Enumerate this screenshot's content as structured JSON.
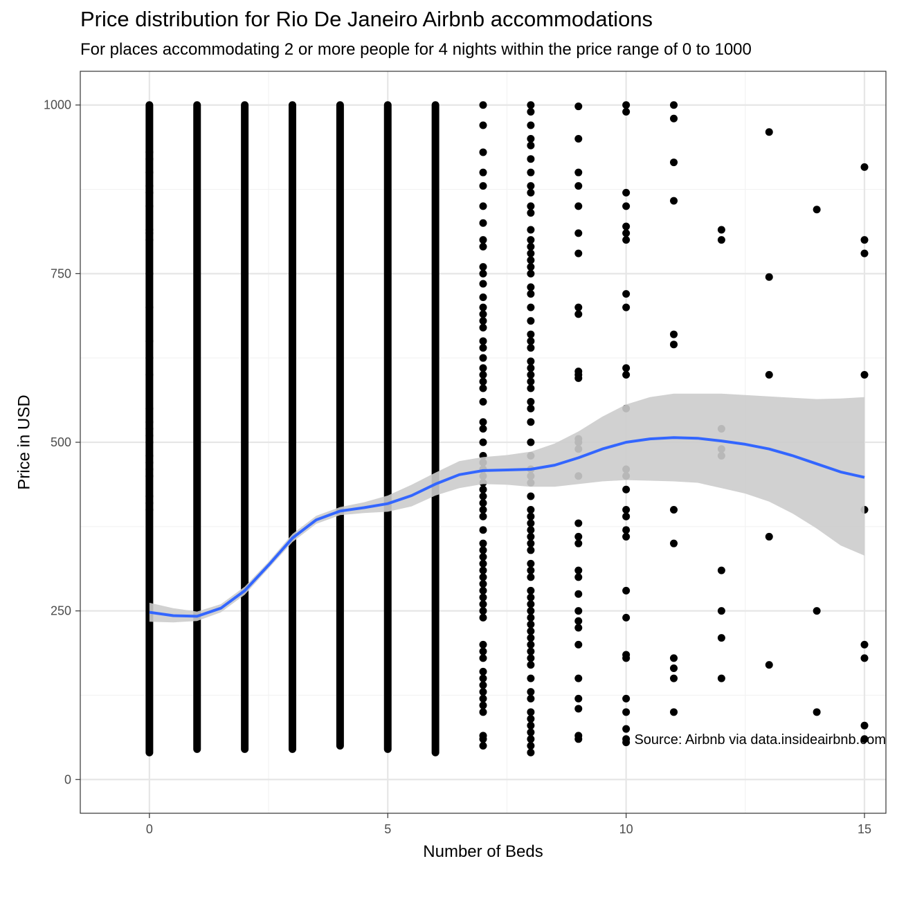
{
  "title": "Price distribution for Rio De Janeiro Airbnb accommodations",
  "subtitle": "For places accommodating 2 or more people for 4 nights within the price range of 0 to 1000",
  "caption": "Source: Airbnb via data.insideairbnb.com",
  "colors": {
    "points": "#000000",
    "smooth_line": "#3366FF",
    "ribbon": "#cccccc",
    "grid_major": "#e6e6e6",
    "grid_minor": "#f2f2f2",
    "panel_border": "#333333"
  },
  "chart_data": {
    "type": "scatter",
    "xlabel": "Number of Beds",
    "ylabel": "Price in USD",
    "xlim": [
      -1.45,
      15.45
    ],
    "ylim": [
      -50,
      1050
    ],
    "x_ticks": [
      0,
      5,
      10,
      15
    ],
    "y_ticks": [
      0,
      250,
      500,
      750,
      1000
    ],
    "grid": true,
    "dense_columns": [
      {
        "x": 0,
        "min": 40,
        "max": 1000
      },
      {
        "x": 1,
        "min": 45,
        "max": 1000
      },
      {
        "x": 2,
        "min": 45,
        "max": 1000
      },
      {
        "x": 3,
        "min": 45,
        "max": 1000
      },
      {
        "x": 4,
        "min": 50,
        "max": 1000
      },
      {
        "x": 5,
        "min": 45,
        "max": 1000
      },
      {
        "x": 6,
        "min": 40,
        "max": 1000
      }
    ],
    "sparse_points": [
      [
        0,
        930
      ],
      [
        0,
        920
      ],
      [
        0,
        900
      ],
      [
        0,
        880
      ],
      [
        0,
        870
      ],
      [
        0,
        850
      ],
      [
        0,
        815
      ],
      [
        0,
        810
      ],
      [
        0,
        800
      ],
      [
        0,
        750
      ],
      [
        0,
        700
      ],
      [
        0,
        650
      ],
      [
        0,
        625
      ],
      [
        0,
        600
      ],
      [
        0,
        550
      ],
      [
        0,
        530
      ],
      [
        0,
        520
      ],
      [
        0,
        510
      ],
      [
        0,
        500
      ],
      [
        0,
        480
      ],
      [
        0,
        470
      ],
      [
        0,
        460
      ],
      [
        0,
        450
      ],
      [
        0,
        420
      ],
      [
        0,
        410
      ],
      [
        0,
        400
      ],
      [
        7,
        1000
      ],
      [
        7,
        970
      ],
      [
        7,
        930
      ],
      [
        7,
        900
      ],
      [
        7,
        880
      ],
      [
        7,
        850
      ],
      [
        7,
        825
      ],
      [
        7,
        800
      ],
      [
        7,
        790
      ],
      [
        7,
        760
      ],
      [
        7,
        750
      ],
      [
        7,
        735
      ],
      [
        7,
        715
      ],
      [
        7,
        700
      ],
      [
        7,
        690
      ],
      [
        7,
        680
      ],
      [
        7,
        670
      ],
      [
        7,
        650
      ],
      [
        7,
        640
      ],
      [
        7,
        625
      ],
      [
        7,
        610
      ],
      [
        7,
        600
      ],
      [
        7,
        590
      ],
      [
        7,
        580
      ],
      [
        7,
        560
      ],
      [
        7,
        530
      ],
      [
        7,
        520
      ],
      [
        7,
        500
      ],
      [
        7,
        480
      ],
      [
        7,
        470
      ],
      [
        7,
        460
      ],
      [
        7,
        450
      ],
      [
        7,
        440
      ],
      [
        7,
        430
      ],
      [
        7,
        420
      ],
      [
        7,
        410
      ],
      [
        7,
        400
      ],
      [
        7,
        390
      ],
      [
        7,
        370
      ],
      [
        7,
        350
      ],
      [
        7,
        340
      ],
      [
        7,
        330
      ],
      [
        7,
        320
      ],
      [
        7,
        310
      ],
      [
        7,
        300
      ],
      [
        7,
        290
      ],
      [
        7,
        280
      ],
      [
        7,
        270
      ],
      [
        7,
        260
      ],
      [
        7,
        250
      ],
      [
        7,
        240
      ],
      [
        7,
        200
      ],
      [
        7,
        190
      ],
      [
        7,
        180
      ],
      [
        7,
        160
      ],
      [
        7,
        150
      ],
      [
        7,
        140
      ],
      [
        7,
        130
      ],
      [
        7,
        120
      ],
      [
        7,
        110
      ],
      [
        7,
        100
      ],
      [
        7,
        65
      ],
      [
        7,
        60
      ],
      [
        7,
        50
      ],
      [
        8,
        1000
      ],
      [
        8,
        990
      ],
      [
        8,
        970
      ],
      [
        8,
        950
      ],
      [
        8,
        940
      ],
      [
        8,
        920
      ],
      [
        8,
        900
      ],
      [
        8,
        880
      ],
      [
        8,
        870
      ],
      [
        8,
        850
      ],
      [
        8,
        840
      ],
      [
        8,
        815
      ],
      [
        8,
        800
      ],
      [
        8,
        790
      ],
      [
        8,
        780
      ],
      [
        8,
        770
      ],
      [
        8,
        760
      ],
      [
        8,
        750
      ],
      [
        8,
        730
      ],
      [
        8,
        720
      ],
      [
        8,
        700
      ],
      [
        8,
        680
      ],
      [
        8,
        660
      ],
      [
        8,
        650
      ],
      [
        8,
        640
      ],
      [
        8,
        620
      ],
      [
        8,
        610
      ],
      [
        8,
        600
      ],
      [
        8,
        590
      ],
      [
        8,
        580
      ],
      [
        8,
        560
      ],
      [
        8,
        550
      ],
      [
        8,
        530
      ],
      [
        8,
        500
      ],
      [
        8,
        480
      ],
      [
        8,
        460
      ],
      [
        8,
        450
      ],
      [
        8,
        440
      ],
      [
        8,
        420
      ],
      [
        8,
        400
      ],
      [
        8,
        390
      ],
      [
        8,
        380
      ],
      [
        8,
        370
      ],
      [
        8,
        360
      ],
      [
        8,
        350
      ],
      [
        8,
        340
      ],
      [
        8,
        320
      ],
      [
        8,
        310
      ],
      [
        8,
        300
      ],
      [
        8,
        280
      ],
      [
        8,
        270
      ],
      [
        8,
        260
      ],
      [
        8,
        250
      ],
      [
        8,
        240
      ],
      [
        8,
        230
      ],
      [
        8,
        220
      ],
      [
        8,
        210
      ],
      [
        8,
        200
      ],
      [
        8,
        190
      ],
      [
        8,
        180
      ],
      [
        8,
        170
      ],
      [
        8,
        150
      ],
      [
        8,
        130
      ],
      [
        8,
        120
      ],
      [
        8,
        100
      ],
      [
        8,
        90
      ],
      [
        8,
        80
      ],
      [
        8,
        70
      ],
      [
        8,
        60
      ],
      [
        8,
        50
      ],
      [
        8,
        40
      ],
      [
        9,
        998
      ],
      [
        9,
        950
      ],
      [
        9,
        900
      ],
      [
        9,
        880
      ],
      [
        9,
        850
      ],
      [
        9,
        810
      ],
      [
        9,
        780
      ],
      [
        9,
        700
      ],
      [
        9,
        690
      ],
      [
        9,
        605
      ],
      [
        9,
        600
      ],
      [
        9,
        595
      ],
      [
        9,
        505
      ],
      [
        9,
        500
      ],
      [
        9,
        490
      ],
      [
        9,
        450
      ],
      [
        9,
        380
      ],
      [
        9,
        360
      ],
      [
        9,
        350
      ],
      [
        9,
        310
      ],
      [
        9,
        300
      ],
      [
        9,
        275
      ],
      [
        9,
        250
      ],
      [
        9,
        235
      ],
      [
        9,
        225
      ],
      [
        9,
        200
      ],
      [
        9,
        150
      ],
      [
        9,
        120
      ],
      [
        9,
        105
      ],
      [
        9,
        65
      ],
      [
        9,
        60
      ],
      [
        10,
        1000
      ],
      [
        10,
        990
      ],
      [
        10,
        870
      ],
      [
        10,
        850
      ],
      [
        10,
        820
      ],
      [
        10,
        810
      ],
      [
        10,
        800
      ],
      [
        10,
        720
      ],
      [
        10,
        700
      ],
      [
        10,
        610
      ],
      [
        10,
        600
      ],
      [
        10,
        550
      ],
      [
        10,
        460
      ],
      [
        10,
        450
      ],
      [
        10,
        430
      ],
      [
        10,
        400
      ],
      [
        10,
        390
      ],
      [
        10,
        370
      ],
      [
        10,
        360
      ],
      [
        10,
        280
      ],
      [
        10,
        240
      ],
      [
        10,
        185
      ],
      [
        10,
        180
      ],
      [
        10,
        120
      ],
      [
        10,
        100
      ],
      [
        10,
        75
      ],
      [
        10,
        60
      ],
      [
        10,
        55
      ],
      [
        11,
        1000
      ],
      [
        11,
        980
      ],
      [
        11,
        915
      ],
      [
        11,
        858
      ],
      [
        11,
        660
      ],
      [
        11,
        645
      ],
      [
        11,
        400
      ],
      [
        11,
        350
      ],
      [
        11,
        180
      ],
      [
        11,
        165
      ],
      [
        11,
        150
      ],
      [
        11,
        100
      ],
      [
        12,
        815
      ],
      [
        12,
        800
      ],
      [
        12,
        520
      ],
      [
        12,
        490
      ],
      [
        12,
        480
      ],
      [
        12,
        310
      ],
      [
        12,
        250
      ],
      [
        12,
        210
      ],
      [
        12,
        150
      ],
      [
        13,
        960
      ],
      [
        13,
        745
      ],
      [
        13,
        600
      ],
      [
        13,
        360
      ],
      [
        13,
        170
      ],
      [
        14,
        845
      ],
      [
        14,
        250
      ],
      [
        14,
        100
      ],
      [
        15,
        908
      ],
      [
        15,
        800
      ],
      [
        15,
        780
      ],
      [
        15,
        600
      ],
      [
        15,
        400
      ],
      [
        15,
        200
      ],
      [
        15,
        180
      ],
      [
        15,
        80
      ],
      [
        15,
        60
      ]
    ],
    "smooth_line": [
      [
        0,
        248
      ],
      [
        0.5,
        243
      ],
      [
        1,
        242
      ],
      [
        1.5,
        254
      ],
      [
        2,
        280
      ],
      [
        2.5,
        318
      ],
      [
        3,
        358
      ],
      [
        3.5,
        385
      ],
      [
        4,
        398
      ],
      [
        4.5,
        403
      ],
      [
        5,
        409
      ],
      [
        5.5,
        421
      ],
      [
        6,
        438
      ],
      [
        6.5,
        452
      ],
      [
        7,
        458
      ],
      [
        7.5,
        459
      ],
      [
        8,
        460
      ],
      [
        8.5,
        466
      ],
      [
        9,
        477
      ],
      [
        9.5,
        490
      ],
      [
        10,
        500
      ],
      [
        10.5,
        505
      ],
      [
        11,
        507
      ],
      [
        11.5,
        506
      ],
      [
        12,
        502
      ],
      [
        12.5,
        497
      ],
      [
        13,
        490
      ],
      [
        13.5,
        480
      ],
      [
        14,
        468
      ],
      [
        14.5,
        456
      ],
      [
        15,
        448
      ]
    ],
    "confidence_band": [
      [
        0,
        262,
        234
      ],
      [
        0.5,
        254,
        233
      ],
      [
        1,
        249,
        235
      ],
      [
        1.5,
        260,
        248
      ],
      [
        2,
        286,
        274
      ],
      [
        2.5,
        323,
        313
      ],
      [
        3,
        364,
        352
      ],
      [
        3.5,
        391,
        379
      ],
      [
        4,
        404,
        392
      ],
      [
        4.5,
        411,
        395
      ],
      [
        5,
        421,
        397
      ],
      [
        5.5,
        437,
        405
      ],
      [
        6,
        455,
        421
      ],
      [
        6.5,
        472,
        432
      ],
      [
        7,
        478,
        438
      ],
      [
        7.5,
        481,
        437
      ],
      [
        8,
        486,
        434
      ],
      [
        8.5,
        498,
        434
      ],
      [
        9,
        516,
        438
      ],
      [
        9.5,
        538,
        442
      ],
      [
        10,
        556,
        444
      ],
      [
        10.5,
        567,
        443
      ],
      [
        11,
        572,
        442
      ],
      [
        11.5,
        572,
        440
      ],
      [
        12,
        572,
        432
      ],
      [
        12.5,
        570,
        424
      ],
      [
        13,
        568,
        412
      ],
      [
        13.5,
        566,
        394
      ],
      [
        14,
        564,
        372
      ],
      [
        14.5,
        565,
        347
      ],
      [
        15,
        567,
        332
      ]
    ]
  }
}
